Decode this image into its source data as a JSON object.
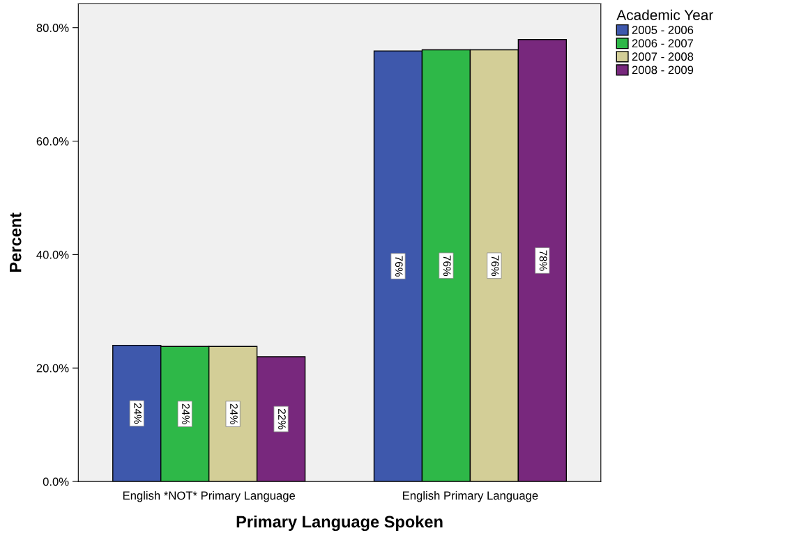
{
  "chart_data": {
    "type": "bar",
    "xlabel": "Primary Language Spoken",
    "ylabel": "Percent",
    "categories": [
      "English *NOT* Primary Language",
      "English Primary Language"
    ],
    "series": [
      {
        "name": "2005 - 2006",
        "color": "#3e58ac",
        "values": [
          24.0,
          75.9
        ],
        "value_labels": [
          "24%",
          "76%"
        ]
      },
      {
        "name": "2006 - 2007",
        "color": "#2eb848",
        "values": [
          23.8,
          76.1
        ],
        "value_labels": [
          "24%",
          "76%"
        ]
      },
      {
        "name": "2007 - 2008",
        "color": "#d3ce97",
        "values": [
          23.8,
          76.1
        ],
        "value_labels": [
          "24%",
          "76%"
        ]
      },
      {
        "name": "2008 - 2009",
        "color": "#78287d",
        "values": [
          22.0,
          77.9
        ],
        "value_labels": [
          "22%",
          "78%"
        ]
      }
    ],
    "legend_title": "Academic Year",
    "legend": "top right",
    "ylim": [
      0,
      84.2
    ],
    "yticks": [
      {
        "value": 0,
        "label": "0.0%"
      },
      {
        "value": 20,
        "label": "20.0%"
      },
      {
        "value": 40,
        "label": "40.0%"
      },
      {
        "value": 60,
        "label": "60.0%"
      },
      {
        "value": 80,
        "label": "80.0%"
      }
    ],
    "grid": false
  }
}
